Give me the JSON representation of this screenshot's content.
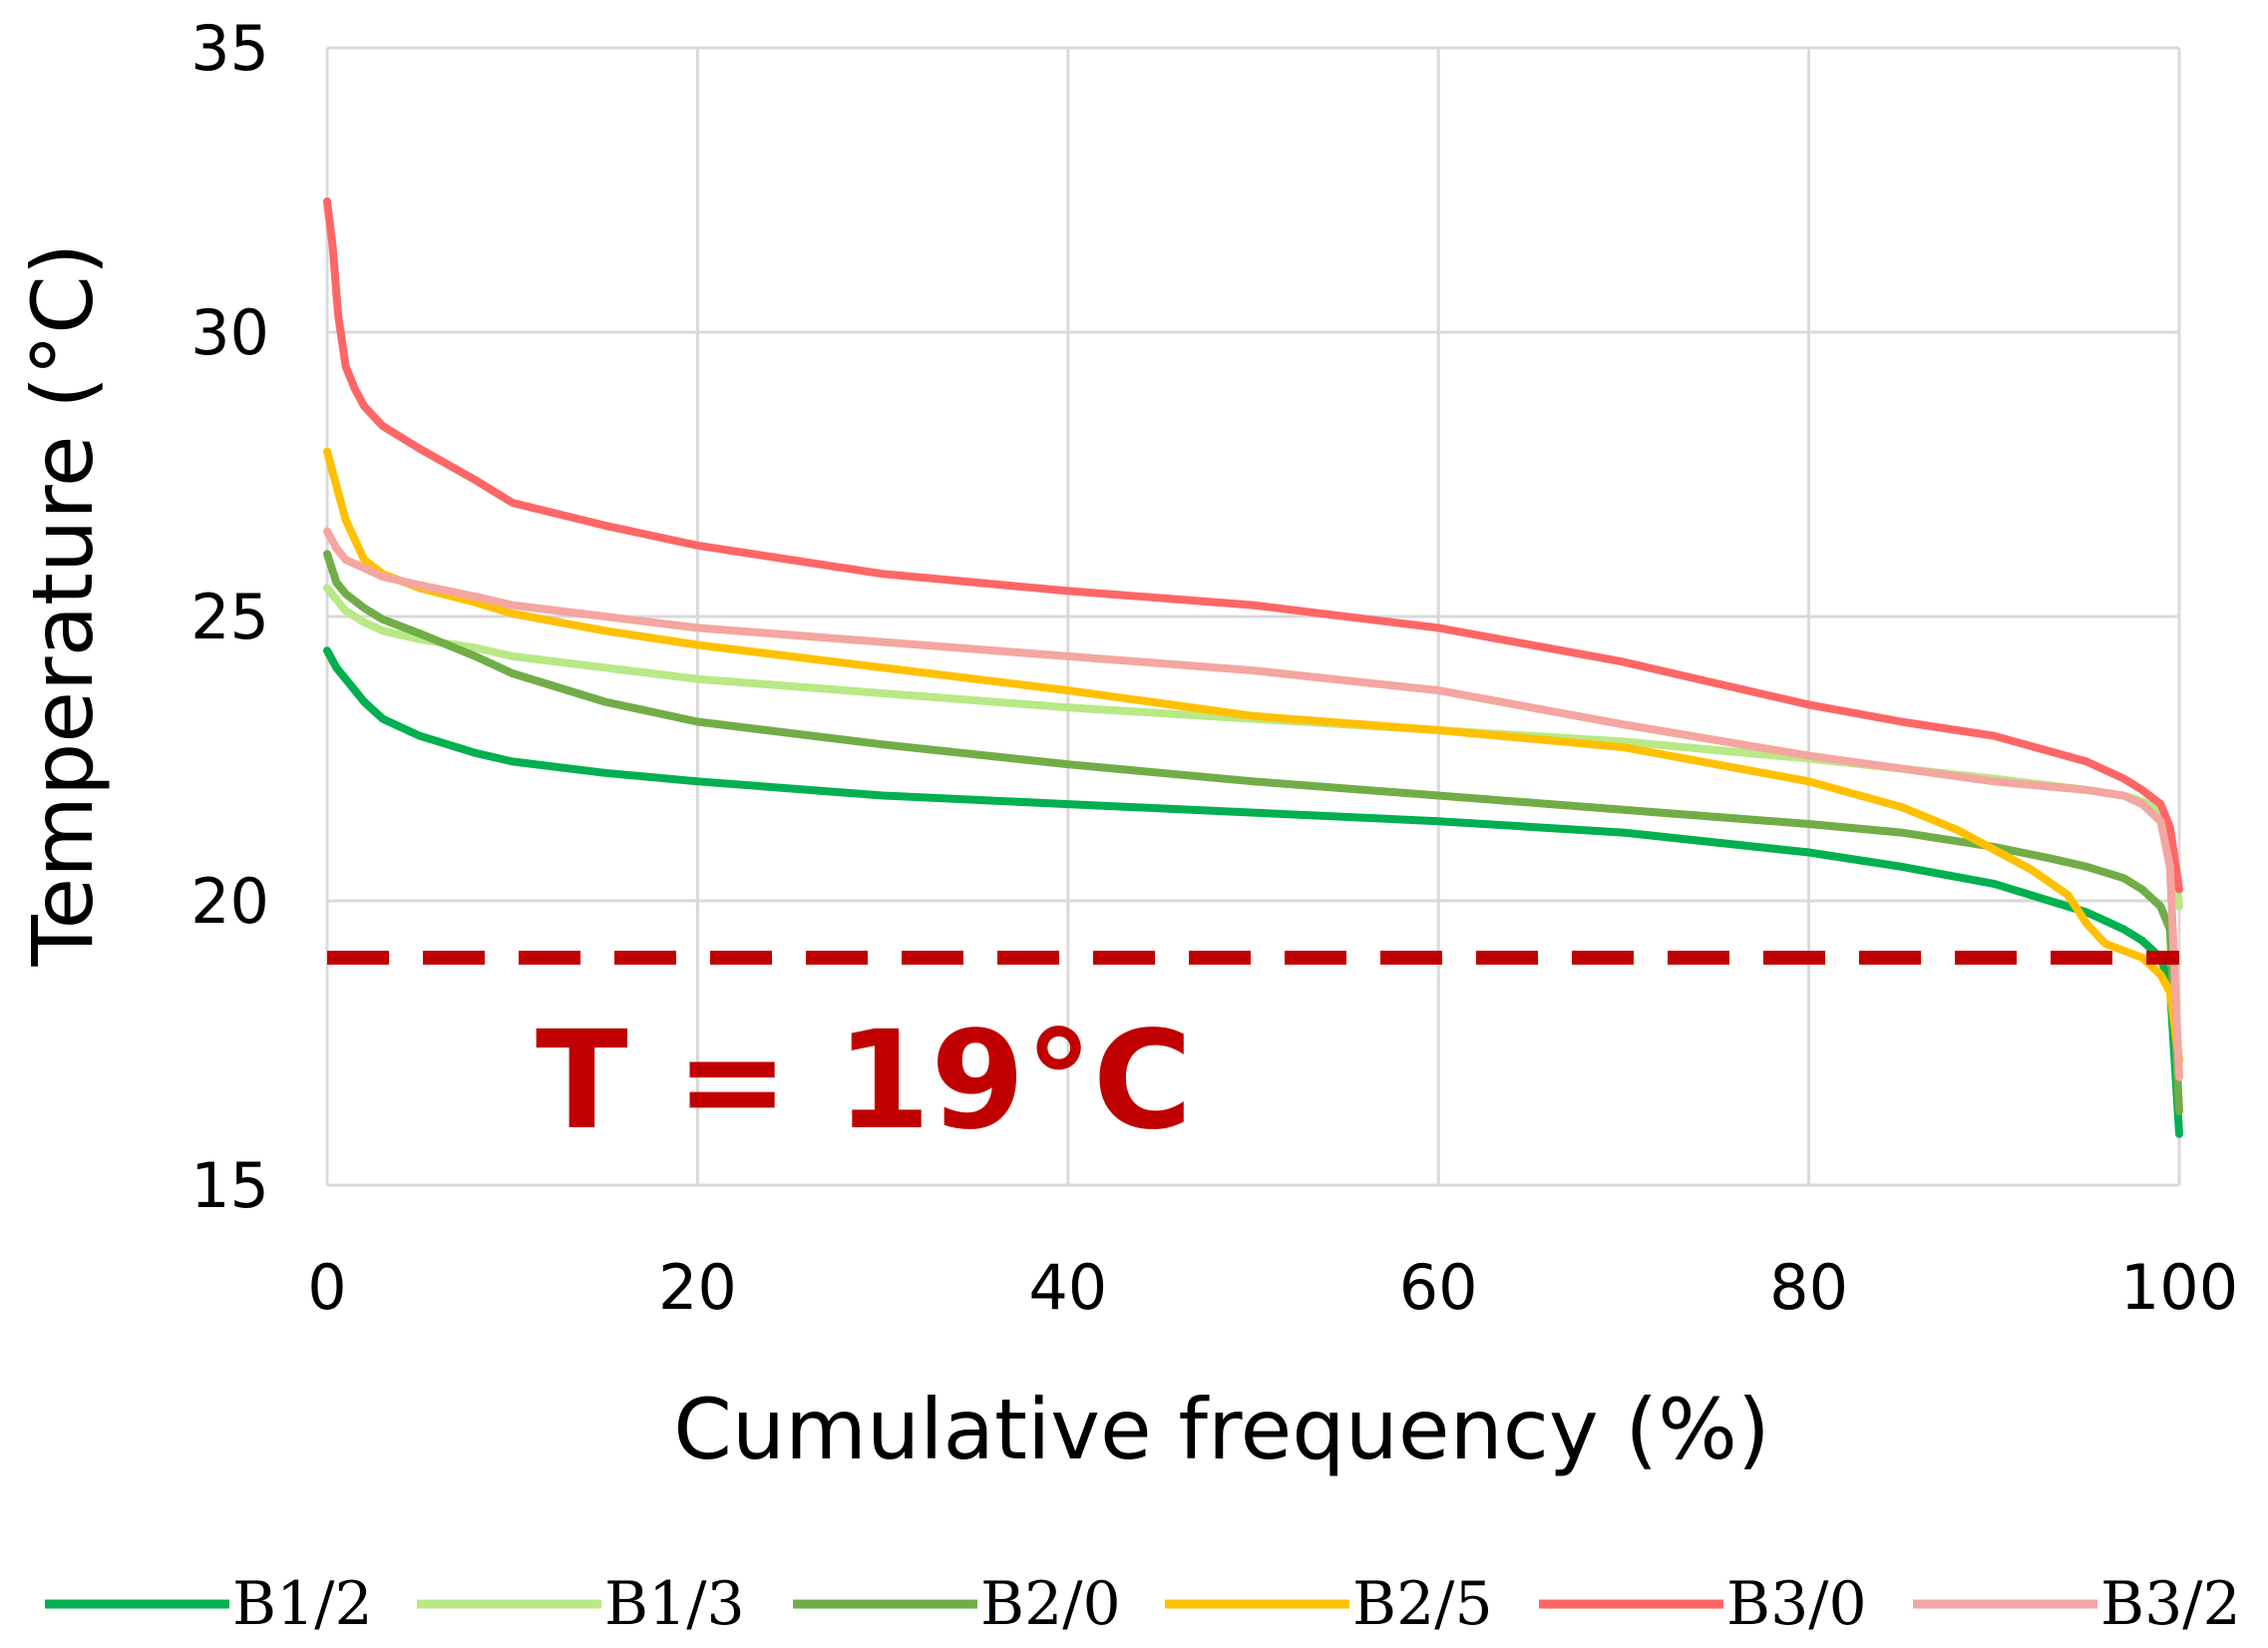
{
  "chart_data": {
    "type": "line",
    "title": "",
    "xlabel": "Cumulative frequency (%)",
    "ylabel": "Temperature (°C)",
    "xlim": [
      0,
      100
    ],
    "ylim": [
      15,
      35
    ],
    "xticks": [
      0,
      20,
      40,
      60,
      80,
      100
    ],
    "yticks": [
      15,
      20,
      25,
      30,
      35
    ],
    "grid": true,
    "legend_position": "bottom",
    "reference_line": {
      "y": 19,
      "label": "T = 19°C",
      "color": "#c00000",
      "style": "dashed"
    },
    "series": [
      {
        "name": "B1/2",
        "color": "#00b050",
        "x": [
          0,
          0.5,
          1,
          2,
          3,
          5,
          8,
          10,
          15,
          20,
          30,
          40,
          50,
          60,
          70,
          80,
          85,
          90,
          93,
          95,
          97,
          98,
          99,
          99.5,
          100
        ],
        "y": [
          24.4,
          24.1,
          23.9,
          23.5,
          23.2,
          22.9,
          22.6,
          22.45,
          22.25,
          22.1,
          21.85,
          21.7,
          21.55,
          21.4,
          21.2,
          20.85,
          20.6,
          20.3,
          20.0,
          19.8,
          19.5,
          19.3,
          19.0,
          18.5,
          15.9
        ]
      },
      {
        "name": "B1/3",
        "color": "#b8e986",
        "x": [
          0,
          0.5,
          1,
          2,
          3,
          5,
          8,
          10,
          15,
          20,
          30,
          40,
          50,
          60,
          70,
          80,
          90,
          95,
          97,
          98,
          99,
          99.5,
          100
        ],
        "y": [
          25.5,
          25.3,
          25.1,
          24.9,
          24.75,
          24.6,
          24.45,
          24.3,
          24.1,
          23.9,
          23.65,
          23.4,
          23.2,
          23.0,
          22.8,
          22.5,
          22.15,
          21.95,
          21.85,
          21.75,
          21.6,
          21.3,
          19.9
        ]
      },
      {
        "name": "B2/0",
        "color": "#70ad47",
        "x": [
          0,
          0.5,
          1,
          2,
          3,
          5,
          8,
          10,
          15,
          20,
          30,
          40,
          50,
          60,
          70,
          80,
          85,
          90,
          93,
          95,
          97,
          98,
          99,
          99.5,
          100
        ],
        "y": [
          26.1,
          25.6,
          25.4,
          25.15,
          24.95,
          24.7,
          24.3,
          24.0,
          23.5,
          23.15,
          22.75,
          22.4,
          22.1,
          21.85,
          21.6,
          21.35,
          21.2,
          20.95,
          20.75,
          20.6,
          20.4,
          20.2,
          19.9,
          19.5,
          16.3
        ]
      },
      {
        "name": "B2/5",
        "color": "#ffc000",
        "x": [
          0,
          0.5,
          1,
          2,
          3,
          5,
          8,
          10,
          15,
          20,
          30,
          40,
          50,
          60,
          70,
          80,
          85,
          88,
          90,
          92,
          94,
          95,
          96,
          98,
          99,
          99.5,
          100
        ],
        "y": [
          27.9,
          27.3,
          26.7,
          26.0,
          25.75,
          25.5,
          25.25,
          25.05,
          24.75,
          24.5,
          24.1,
          23.7,
          23.25,
          23.0,
          22.7,
          22.1,
          21.65,
          21.25,
          20.9,
          20.55,
          20.1,
          19.6,
          19.25,
          19.0,
          18.7,
          18.4,
          17.2
        ]
      },
      {
        "name": "B3/0",
        "color": "#ff6666",
        "x": [
          0,
          0.3,
          0.6,
          1,
          1.5,
          2,
          3,
          5,
          8,
          10,
          15,
          20,
          30,
          40,
          50,
          60,
          70,
          80,
          85,
          90,
          95,
          97,
          98,
          99,
          99.5,
          100
        ],
        "y": [
          32.3,
          31.5,
          30.3,
          29.4,
          29.0,
          28.7,
          28.35,
          27.95,
          27.4,
          27.0,
          26.6,
          26.25,
          25.75,
          25.45,
          25.2,
          24.8,
          24.2,
          23.45,
          23.15,
          22.9,
          22.45,
          22.15,
          21.95,
          21.7,
          21.3,
          20.2
        ]
      },
      {
        "name": "B3/2",
        "color": "#f4a6a0",
        "x": [
          0,
          0.5,
          1,
          2,
          3,
          5,
          8,
          10,
          15,
          20,
          30,
          40,
          50,
          60,
          70,
          80,
          90,
          95,
          97,
          98,
          99,
          99.5,
          100
        ],
        "y": [
          26.5,
          26.2,
          26.0,
          25.85,
          25.7,
          25.55,
          25.35,
          25.2,
          25.0,
          24.8,
          24.55,
          24.3,
          24.05,
          23.7,
          23.1,
          22.55,
          22.1,
          21.95,
          21.85,
          21.7,
          21.4,
          20.6,
          16.9
        ]
      }
    ]
  }
}
